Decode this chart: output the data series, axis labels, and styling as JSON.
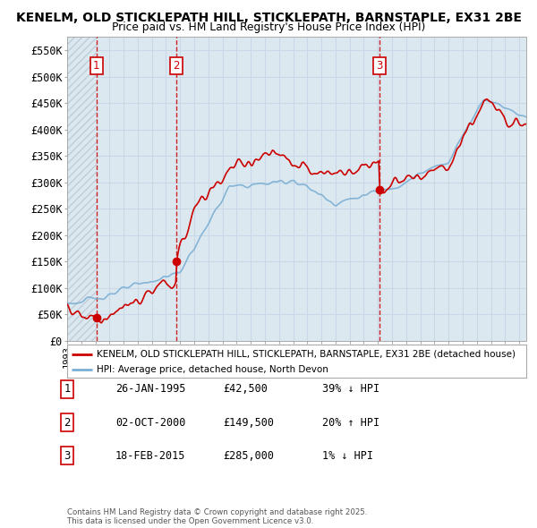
{
  "title_line1": "KENELM, OLD STICKLEPATH HILL, STICKLEPATH, BARNSTAPLE, EX31 2BE",
  "title_line2": "Price paid vs. HM Land Registry's House Price Index (HPI)",
  "ylim": [
    0,
    575000
  ],
  "yticks": [
    0,
    50000,
    100000,
    150000,
    200000,
    250000,
    300000,
    350000,
    400000,
    450000,
    500000,
    550000
  ],
  "ytick_labels": [
    "£0",
    "£50K",
    "£100K",
    "£150K",
    "£200K",
    "£250K",
    "£300K",
    "£350K",
    "£400K",
    "£450K",
    "£500K",
    "£550K"
  ],
  "sale_color": "#cc0000",
  "hpi_color": "#7bafd4",
  "vline_color": "#cc0000",
  "background_color": "#ffffff",
  "grid_color": "#c8d8e8",
  "plot_bg_color": "#dce8f0",
  "hatch_color": "#c0cdd8",
  "legend_line1": "KENELM, OLD STICKLEPATH HILL, STICKLEPATH, BARNSTAPLE, EX31 2BE (detached house)",
  "legend_line2": "HPI: Average price, detached house, North Devon",
  "sale1_label": "1",
  "sale1_date": "26-JAN-1995",
  "sale1_price": "£42,500",
  "sale1_hpi": "39% ↓ HPI",
  "sale2_label": "2",
  "sale2_date": "02-OCT-2000",
  "sale2_price": "£149,500",
  "sale2_hpi": "20% ↑ HPI",
  "sale3_label": "3",
  "sale3_date": "18-FEB-2015",
  "sale3_price": "£285,000",
  "sale3_hpi": "1% ↓ HPI",
  "footer": "Contains HM Land Registry data © Crown copyright and database right 2025.\nThis data is licensed under the Open Government Licence v3.0.",
  "sale1_x": 1995.07,
  "sale1_y": 42500,
  "sale2_x": 2000.75,
  "sale2_y": 149500,
  "sale3_x": 2015.12,
  "sale3_y": 285000,
  "xmin": 1993.0,
  "xmax": 2025.5
}
